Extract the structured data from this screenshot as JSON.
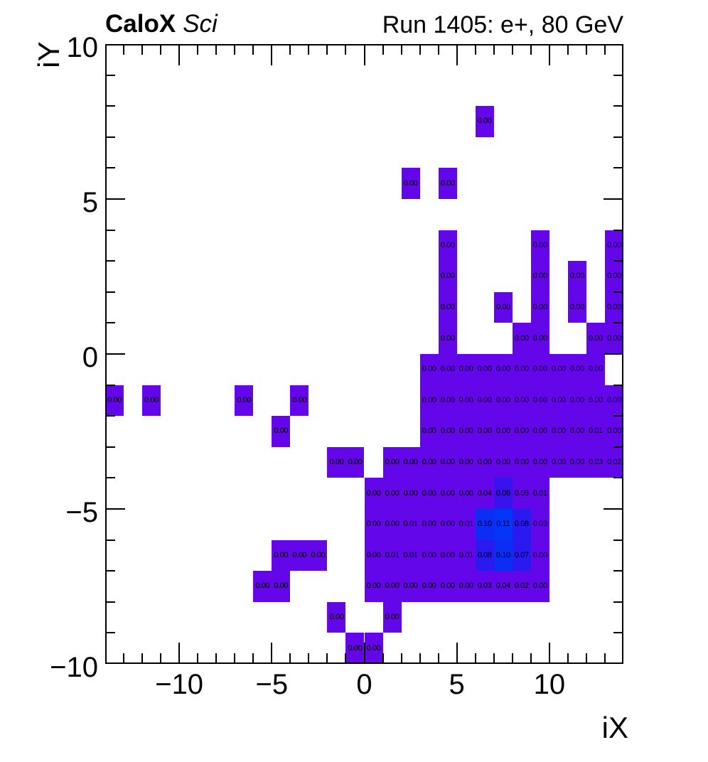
{
  "header": {
    "experiment": "CaloX",
    "detector": "Sci",
    "run_info": "Run 1405: e+, 80 GeV"
  },
  "chart_data": {
    "type": "heatmap",
    "title": "CaloX Sci  |  Run 1405: e+, 80 GeV",
    "xlabel": "iX",
    "ylabel": "iY",
    "xlim": [
      -14,
      14
    ],
    "ylim": [
      -10,
      10
    ],
    "bin_size": 1,
    "x_tick_labels": [
      -10,
      -5,
      0,
      5,
      10
    ],
    "y_tick_labels": [
      -10,
      -5,
      0,
      5,
      10
    ],
    "grid": false,
    "legend": "none",
    "colors": {
      "default": "#6307EA",
      "0.06": "#3912ED",
      "0.07": "#2A1AEF",
      "0.08": "#2A1AEF",
      "0.10": "#0C2EF3",
      "0.11": "#0536F6"
    },
    "cells": [
      [
        6,
        7,
        "0.00"
      ],
      [
        2,
        5,
        "0.00"
      ],
      [
        4,
        5,
        "0.00"
      ],
      [
        4,
        3,
        "0.00"
      ],
      [
        9,
        3,
        "0.00"
      ],
      [
        13,
        3,
        "0.00"
      ],
      [
        4,
        2,
        "0.00"
      ],
      [
        9,
        2,
        "0.00"
      ],
      [
        11,
        2,
        "0.00"
      ],
      [
        13,
        2,
        "0.00"
      ],
      [
        4,
        1,
        "0.00"
      ],
      [
        7,
        1,
        "0.00"
      ],
      [
        9,
        1,
        "0.00"
      ],
      [
        11,
        1,
        "0.00"
      ],
      [
        13,
        1,
        "0.00"
      ],
      [
        4,
        0,
        "0.00"
      ],
      [
        8,
        0,
        "0.00"
      ],
      [
        9,
        0,
        "0.00"
      ],
      [
        12,
        0,
        "0.00"
      ],
      [
        13,
        0,
        "0.00"
      ],
      [
        3,
        -1,
        "0.00"
      ],
      [
        4,
        -1,
        "0.00"
      ],
      [
        5,
        -1,
        "0.00"
      ],
      [
        6,
        -1,
        "0.00"
      ],
      [
        7,
        -1,
        "0.00"
      ],
      [
        8,
        -1,
        "0.00"
      ],
      [
        9,
        -1,
        "0.00"
      ],
      [
        10,
        -1,
        "0.00"
      ],
      [
        11,
        -1,
        "0.00"
      ],
      [
        12,
        -1,
        "0.00"
      ],
      [
        -14,
        -2,
        "0.00"
      ],
      [
        -12,
        -2,
        "0.00"
      ],
      [
        -7,
        -2,
        "0.00"
      ],
      [
        -4,
        -2,
        "0.00"
      ],
      [
        3,
        -2,
        "0.00"
      ],
      [
        4,
        -2,
        "0.00"
      ],
      [
        5,
        -2,
        "0.00"
      ],
      [
        6,
        -2,
        "0.00"
      ],
      [
        7,
        -2,
        "0.00"
      ],
      [
        8,
        -2,
        "0.00"
      ],
      [
        9,
        -2,
        "0.00"
      ],
      [
        10,
        -2,
        "0.00"
      ],
      [
        11,
        -2,
        "0.00"
      ],
      [
        12,
        -2,
        "0.00"
      ],
      [
        13,
        -2,
        "0.00"
      ],
      [
        -5,
        -3,
        "0.00"
      ],
      [
        3,
        -3,
        "0.00"
      ],
      [
        4,
        -3,
        "0.00"
      ],
      [
        5,
        -3,
        "0.00"
      ],
      [
        6,
        -3,
        "0.00"
      ],
      [
        7,
        -3,
        "0.00"
      ],
      [
        8,
        -3,
        "0.00"
      ],
      [
        9,
        -3,
        "0.00"
      ],
      [
        10,
        -3,
        "0.00"
      ],
      [
        11,
        -3,
        "0.00"
      ],
      [
        12,
        -3,
        "0.01"
      ],
      [
        13,
        -3,
        "0.00"
      ],
      [
        -2,
        -4,
        "0.00"
      ],
      [
        -1,
        -4,
        "0.00"
      ],
      [
        1,
        -4,
        "0.00"
      ],
      [
        2,
        -4,
        "0.00"
      ],
      [
        3,
        -4,
        "0.00"
      ],
      [
        4,
        -4,
        "0.00"
      ],
      [
        5,
        -4,
        "0.00"
      ],
      [
        6,
        -4,
        "0.00"
      ],
      [
        7,
        -4,
        "0.00"
      ],
      [
        8,
        -4,
        "0.00"
      ],
      [
        9,
        -4,
        "0.00"
      ],
      [
        10,
        -4,
        "0.00"
      ],
      [
        11,
        -4,
        "0.00"
      ],
      [
        12,
        -4,
        "0.03"
      ],
      [
        13,
        -4,
        "0.02"
      ],
      [
        0,
        -5,
        "0.00"
      ],
      [
        1,
        -5,
        "0.00"
      ],
      [
        2,
        -5,
        "0.00"
      ],
      [
        3,
        -5,
        "0.00"
      ],
      [
        4,
        -5,
        "0.00"
      ],
      [
        5,
        -5,
        "0.00"
      ],
      [
        6,
        -5,
        "0.04"
      ],
      [
        7,
        -5,
        "0.06"
      ],
      [
        8,
        -5,
        "0.05"
      ],
      [
        9,
        -5,
        "0.01"
      ],
      [
        0,
        -6,
        "0.00"
      ],
      [
        1,
        -6,
        "0.00"
      ],
      [
        2,
        -6,
        "0.01"
      ],
      [
        3,
        -6,
        "0.00"
      ],
      [
        4,
        -6,
        "0.00"
      ],
      [
        5,
        -6,
        "0.01"
      ],
      [
        6,
        -6,
        "0.10"
      ],
      [
        7,
        -6,
        "0.11"
      ],
      [
        8,
        -6,
        "0.08"
      ],
      [
        9,
        -6,
        "0.03"
      ],
      [
        -5,
        -7,
        "0.00"
      ],
      [
        -4,
        -7,
        "0.00"
      ],
      [
        -3,
        -7,
        "0.00"
      ],
      [
        0,
        -7,
        "0.00"
      ],
      [
        1,
        -7,
        "0.01"
      ],
      [
        2,
        -7,
        "0.01"
      ],
      [
        3,
        -7,
        "0.00"
      ],
      [
        4,
        -7,
        "0.00"
      ],
      [
        5,
        -7,
        "0.01"
      ],
      [
        6,
        -7,
        "0.08"
      ],
      [
        7,
        -7,
        "0.10"
      ],
      [
        8,
        -7,
        "0.07"
      ],
      [
        9,
        -7,
        "0.00"
      ],
      [
        -6,
        -8,
        "0.00"
      ],
      [
        -5,
        -8,
        "0.00"
      ],
      [
        0,
        -8,
        "0.00"
      ],
      [
        1,
        -8,
        "0.00"
      ],
      [
        2,
        -8,
        "0.00"
      ],
      [
        3,
        -8,
        "0.00"
      ],
      [
        4,
        -8,
        "0.00"
      ],
      [
        5,
        -8,
        "0.00"
      ],
      [
        6,
        -8,
        "0.03"
      ],
      [
        7,
        -8,
        "0.04"
      ],
      [
        8,
        -8,
        "0.02"
      ],
      [
        9,
        -8,
        "0.00"
      ],
      [
        -2,
        -9,
        "0.00"
      ],
      [
        1,
        -9,
        "0.00"
      ],
      [
        -1,
        -10,
        "0.00"
      ],
      [
        0,
        -10,
        "0.00"
      ]
    ]
  }
}
